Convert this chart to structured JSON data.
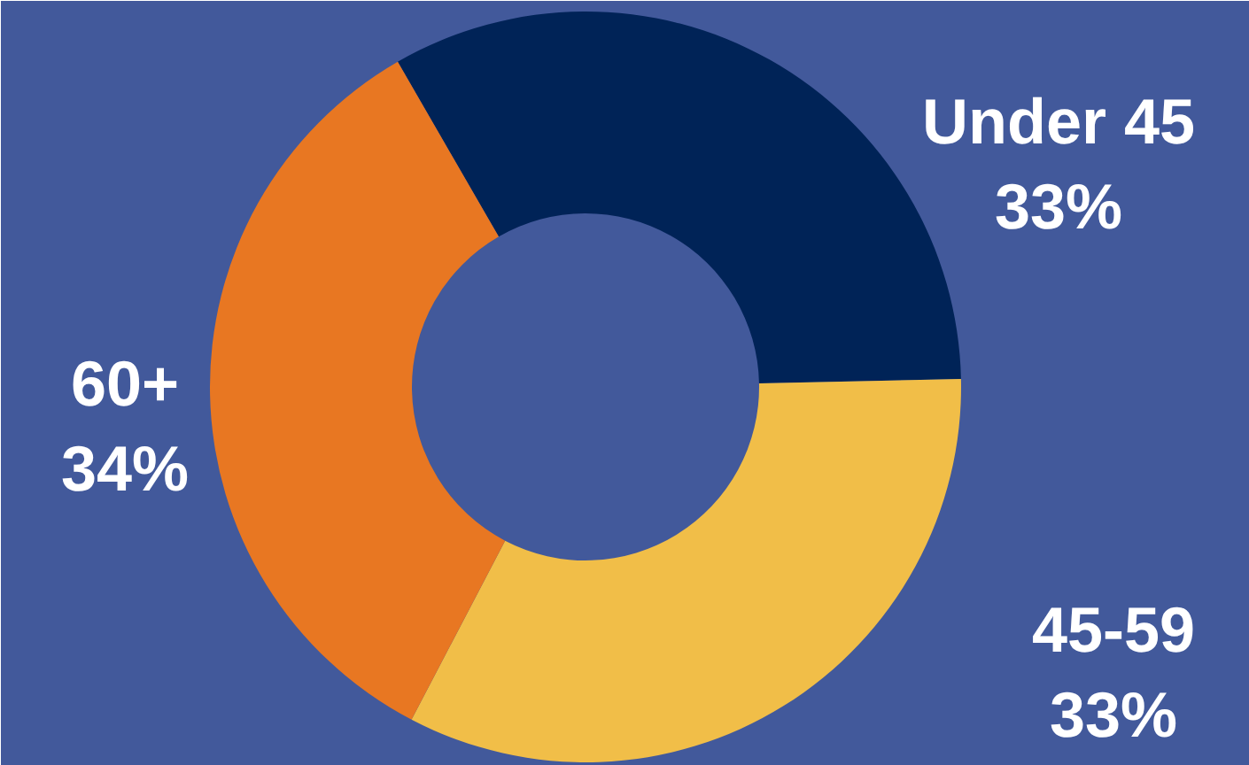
{
  "chart_data": {
    "type": "donut",
    "categories": [
      "Under 45",
      "45-59",
      "60+"
    ],
    "values": [
      33,
      33,
      34
    ],
    "colors": [
      "#002357",
      "#f1be48",
      "#e87722"
    ],
    "value_labels": [
      "33%",
      "33%",
      "34%"
    ]
  }
}
